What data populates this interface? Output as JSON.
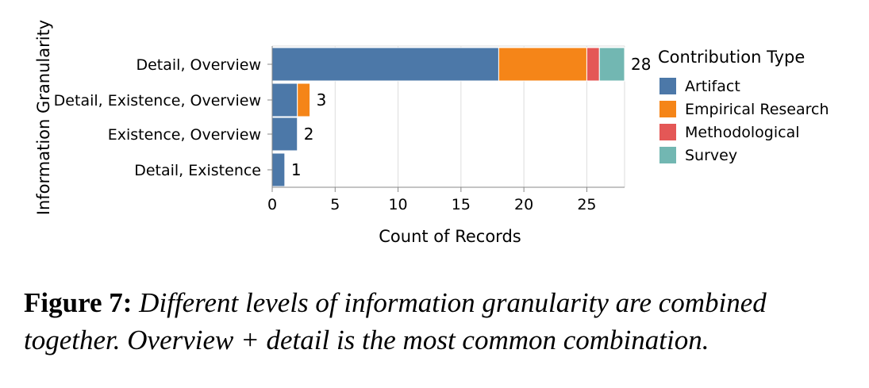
{
  "chart_data": {
    "type": "bar",
    "orientation": "horizontal",
    "stacked": true,
    "xlabel": "Count of Records",
    "ylabel": "Information Granularity",
    "xlim": [
      0,
      28
    ],
    "xticks": [
      "0",
      "5",
      "10",
      "15",
      "20",
      "25"
    ],
    "grid": true,
    "categories": [
      "Detail, Overview",
      "Detail, Existence, Overview",
      "Existence, Overview",
      "Detail, Existence"
    ],
    "totals": [
      "28",
      "3",
      "2",
      "1"
    ],
    "legend": {
      "title": "Contribution Type",
      "position": "right"
    },
    "series": [
      {
        "name": "Artifact",
        "color": "#4c78a8",
        "values": [
          18,
          2,
          2,
          1
        ]
      },
      {
        "name": "Empirical Research",
        "color": "#f58518",
        "values": [
          7,
          1,
          0,
          0
        ]
      },
      {
        "name": "Methodological",
        "color": "#e45756",
        "values": [
          1,
          0,
          0,
          0
        ]
      },
      {
        "name": "Survey",
        "color": "#72b7b2",
        "values": [
          2,
          0,
          0,
          0
        ]
      }
    ]
  },
  "caption": {
    "label": "Figure 7:",
    "text": "Different levels of information granularity are combined together. Overview + detail is the most common combination."
  }
}
